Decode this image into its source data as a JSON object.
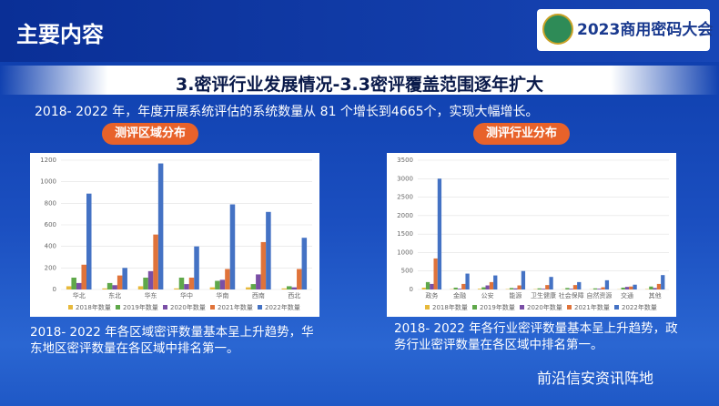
{
  "header": {
    "title": "主要内容",
    "logo": "2023商用密码大会"
  },
  "title": "3.密评行业发展情况-3.3密评覆盖范围逐年扩大",
  "subtitle": "2018- 2022 年，年度开展系统评估的系统数量从 81 个增长到4665个，实现大幅增长。",
  "captions": [
    "2018- 2022 年各区域密评数量基本呈上升趋势，华东地区密评数量在各区域中排名第一。",
    "2018- 2022 年各行业密评数量基本呈上升趋势，政务行业密评数量在各区域中排名第一。"
  ],
  "watermark": "前沿信安资讯阵地",
  "chart_data": [
    {
      "type": "bar",
      "title": "测评区域分布",
      "categories": [
        "华北",
        "东北",
        "华东",
        "华中",
        "华南",
        "西南",
        "西北"
      ],
      "ylim": [
        0,
        1200
      ],
      "yticks": [
        0,
        200,
        400,
        600,
        800,
        1000,
        1200
      ],
      "grid": true,
      "legend": "bottom",
      "series": [
        {
          "name": "2018年数量",
          "color": "#e7b93b",
          "values": [
            30,
            10,
            30,
            10,
            20,
            20,
            10
          ]
        },
        {
          "name": "2019年数量",
          "color": "#5fa84a",
          "values": [
            110,
            60,
            110,
            110,
            80,
            50,
            30
          ]
        },
        {
          "name": "2020年数量",
          "color": "#7a4fa6",
          "values": [
            60,
            40,
            170,
            50,
            90,
            140,
            20
          ]
        },
        {
          "name": "2021年数量",
          "color": "#e0733a",
          "values": [
            230,
            130,
            510,
            110,
            190,
            440,
            190
          ]
        },
        {
          "name": "2022年数量",
          "color": "#4472c4",
          "values": [
            890,
            200,
            1170,
            400,
            790,
            720,
            480
          ]
        }
      ]
    },
    {
      "type": "bar",
      "title": "测评行业分布",
      "categories": [
        "政务",
        "金融",
        "公安",
        "能源",
        "卫生健康",
        "社会保障",
        "自然资源",
        "交通",
        "其他"
      ],
      "ylim": [
        0,
        3500
      ],
      "yticks": [
        0,
        500,
        1000,
        1500,
        2000,
        2500,
        3000,
        3500
      ],
      "grid": true,
      "legend": "bottom",
      "series": [
        {
          "name": "2018年数量",
          "color": "#e7b93b",
          "values": [
            50,
            10,
            20,
            10,
            10,
            5,
            5,
            5,
            10
          ]
        },
        {
          "name": "2019年数量",
          "color": "#5fa84a",
          "values": [
            200,
            50,
            60,
            40,
            30,
            40,
            30,
            50,
            80
          ]
        },
        {
          "name": "2020年数量",
          "color": "#7a4fa6",
          "values": [
            150,
            20,
            110,
            30,
            20,
            20,
            20,
            70,
            40
          ]
        },
        {
          "name": "2021年数量",
          "color": "#e0733a",
          "values": [
            840,
            150,
            200,
            110,
            120,
            120,
            60,
            80,
            150
          ]
        },
        {
          "name": "2022年数量",
          "color": "#4472c4",
          "values": [
            3000,
            430,
            380,
            500,
            340,
            200,
            250,
            130,
            390
          ]
        }
      ]
    }
  ]
}
